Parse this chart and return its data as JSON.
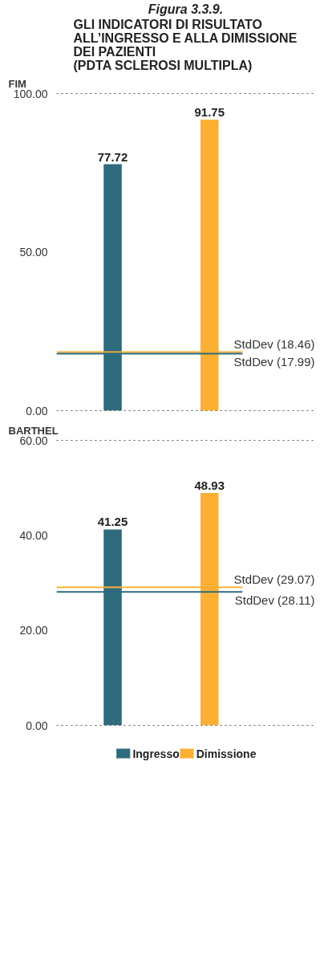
{
  "chart_data": [
    {
      "type": "bar",
      "title": "Figura 3.3.9.",
      "subtitle": "GLI INDICATORI DI RISULTATO\nALL’INGRESSO E ALLA DIMISSIONE\nDEI PAZIENTI\n(PDTA SCLEROSI MULTIPLA)",
      "ylabel": "FIM",
      "categories": [
        null
      ],
      "series": [
        {
          "color": "#2e6b7d",
          "values": [
            77.72
          ]
        },
        {
          "color": "#fbb034",
          "values": [
            91.75
          ]
        }
      ],
      "ylim": [
        0,
        100
      ],
      "yticks": [
        {
          "value": 0,
          "label": "0.00"
        },
        {
          "value": 50,
          "label": "50.00"
        },
        {
          "value": 100,
          "label": "100.00"
        }
      ],
      "ref_lines": [
        {
          "axis": "y",
          "value": 18.46,
          "label": "StdDev (18.46)",
          "color": "#fbb034"
        },
        {
          "axis": "y",
          "value": 17.99,
          "label": "StdDev (17.99)",
          "color": "#2e6b7d"
        }
      ],
      "data_labels": true,
      "grid": false,
      "legend": false
    },
    {
      "type": "bar",
      "ylabel": "BARTHEL",
      "categories": [
        null
      ],
      "series": [
        {
          "name": "Ingresso",
          "color": "#2e6b7d",
          "values": [
            41.25
          ]
        },
        {
          "name": "Dimissione",
          "color": "#fbb034",
          "values": [
            48.93
          ]
        }
      ],
      "ylim": [
        0,
        60
      ],
      "yticks": [
        {
          "value": 0,
          "label": "0.00"
        },
        {
          "value": 20,
          "label": "20.00"
        },
        {
          "value": 40,
          "label": "40.00"
        },
        {
          "value": 60,
          "label": "60.00"
        }
      ],
      "ref_lines": [
        {
          "axis": "y",
          "value": 29.07,
          "label": "StdDev (29.07)",
          "color": "#fbb034"
        },
        {
          "axis": "y",
          "value": 28.11,
          "label": "StdDev (28.11)",
          "color": "#2e6b7d"
        }
      ],
      "data_labels": true,
      "grid": false,
      "legend": "bottom"
    }
  ]
}
